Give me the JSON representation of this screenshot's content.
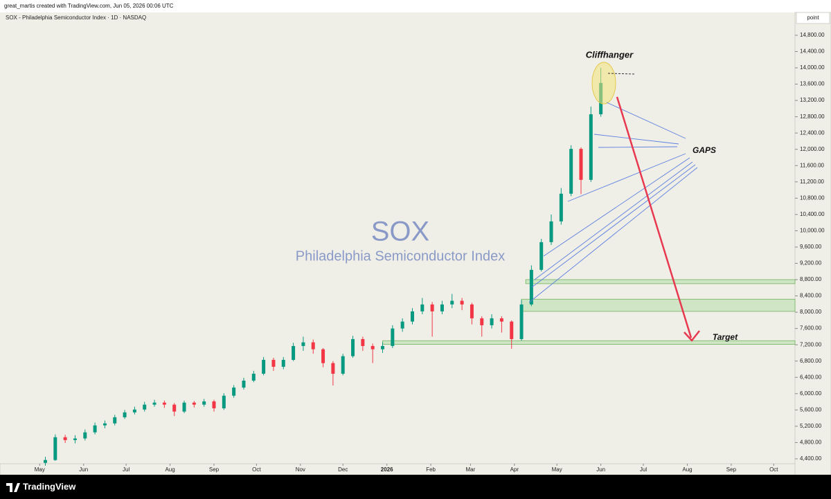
{
  "chart_data": {
    "type": "candlestick",
    "credit": "great_martis created with TradingView.com, Jun 05, 2026 00:06 UTC",
    "title": "SOX - Philadelphia Semiconductor Index · 1D · NASDAQ",
    "y_unit": "point",
    "brand": "TradingView",
    "watermark": {
      "symbol": "SOX",
      "name": "Philadelphia Semiconductor Index"
    },
    "annotations": [
      "Cliffhanger",
      "GAPS",
      "Target"
    ],
    "up_color": "#089981",
    "down_color": "#f23645",
    "zone_color": "#b9ddb0",
    "xlim": [
      "2025-04-03",
      "2026-10-16"
    ],
    "ylim": [
      4280,
      15360
    ],
    "xticks": [
      {
        "value": "2025-05-01",
        "label": "May"
      },
      {
        "value": "2025-06-01",
        "label": "Jun"
      },
      {
        "value": "2025-07-01",
        "label": "Jul"
      },
      {
        "value": "2025-08-01",
        "label": "Aug"
      },
      {
        "value": "2025-09-01",
        "label": "Sep"
      },
      {
        "value": "2025-10-01",
        "label": "Oct"
      },
      {
        "value": "2025-11-01",
        "label": "Nov"
      },
      {
        "value": "2025-12-01",
        "label": "Dec"
      },
      {
        "value": "2026-01-01",
        "label": "2026"
      },
      {
        "value": "2026-02-01",
        "label": "Feb"
      },
      {
        "value": "2026-03-01",
        "label": "Mar"
      },
      {
        "value": "2026-04-01",
        "label": "Apr"
      },
      {
        "value": "2026-05-01",
        "label": "May"
      },
      {
        "value": "2026-06-01",
        "label": "Jun"
      },
      {
        "value": "2026-07-01",
        "label": "Jul"
      },
      {
        "value": "2026-08-01",
        "label": "Aug"
      },
      {
        "value": "2026-09-01",
        "label": "Sep"
      },
      {
        "value": "2026-10-01",
        "label": "Oct"
      }
    ],
    "yticks": [
      {
        "value": 4400,
        "label": "4,400.00"
      },
      {
        "value": 4800,
        "label": "4,800.00"
      },
      {
        "value": 5200,
        "label": "5,200.00"
      },
      {
        "value": 5600,
        "label": "5,600.00"
      },
      {
        "value": 6000,
        "label": "6,000.00"
      },
      {
        "value": 6400,
        "label": "6,400.00"
      },
      {
        "value": 6800,
        "label": "6,800.00"
      },
      {
        "value": 7200,
        "label": "7,200.00"
      },
      {
        "value": 7600,
        "label": "7,600.00"
      },
      {
        "value": 8000,
        "label": "8,000.00"
      },
      {
        "value": 8400,
        "label": "8,400.00"
      },
      {
        "value": 8800,
        "label": "8,800.00"
      },
      {
        "value": 9200,
        "label": "9,200.00"
      },
      {
        "value": 9600,
        "label": "9,600.00"
      },
      {
        "value": 10000,
        "label": "10,000.00"
      },
      {
        "value": 10400,
        "label": "10,400.00"
      },
      {
        "value": 10800,
        "label": "10,800.00"
      },
      {
        "value": 11200,
        "label": "11,200.00"
      },
      {
        "value": 11600,
        "label": "11,600.00"
      },
      {
        "value": 12000,
        "label": "12,000.00"
      },
      {
        "value": 12400,
        "label": "12,400.00"
      },
      {
        "value": 12800,
        "label": "12,800.00"
      },
      {
        "value": 13200,
        "label": "13,200.00"
      },
      {
        "value": 13600,
        "label": "13,600.00"
      },
      {
        "value": 14000,
        "label": "14,000.00"
      },
      {
        "value": 14400,
        "label": "14,400.00"
      },
      {
        "value": 14800,
        "label": "14,800.00"
      }
    ],
    "zones": [
      {
        "from": "2025-12-29",
        "low": 7210,
        "high": 7300
      },
      {
        "from": "2026-04-06",
        "low": 8020,
        "high": 8320
      },
      {
        "from": "2026-04-09",
        "low": 8700,
        "high": 8800
      }
    ],
    "candles": {
      "x": [
        "2025-05-05",
        "2025-05-12",
        "2025-05-19",
        "2025-05-26",
        "2025-06-02",
        "2025-06-09",
        "2025-06-16",
        "2025-06-23",
        "2025-06-30",
        "2025-07-07",
        "2025-07-14",
        "2025-07-21",
        "2025-07-28",
        "2025-08-04",
        "2025-08-11",
        "2025-08-18",
        "2025-08-25",
        "2025-09-01",
        "2025-09-08",
        "2025-09-15",
        "2025-09-22",
        "2025-09-29",
        "2025-10-06",
        "2025-10-13",
        "2025-10-20",
        "2025-10-27",
        "2025-11-03",
        "2025-11-10",
        "2025-11-17",
        "2025-11-24",
        "2025-12-01",
        "2025-12-08",
        "2025-12-15",
        "2025-12-22",
        "2025-12-29",
        "2026-01-05",
        "2026-01-12",
        "2026-01-19",
        "2026-01-26",
        "2026-02-02",
        "2026-02-09",
        "2026-02-16",
        "2026-02-23",
        "2026-03-02",
        "2026-03-09",
        "2026-03-16",
        "2026-03-23",
        "2026-03-30",
        "2026-04-06",
        "2026-04-13",
        "2026-04-20",
        "2026-04-27",
        "2026-05-04",
        "2026-05-11",
        "2026-05-18",
        "2026-05-25",
        "2026-06-01"
      ],
      "open": [
        4300,
        4370,
        4930,
        4860,
        4900,
        5050,
        5220,
        5270,
        5420,
        5540,
        5610,
        5730,
        5780,
        5730,
        5560,
        5780,
        5730,
        5810,
        5640,
        5950,
        6150,
        6320,
        6490,
        6830,
        6660,
        6830,
        7170,
        7260,
        7090,
        6750,
        6490,
        6920,
        7340,
        7170,
        7090,
        7170,
        7600,
        7770,
        8020,
        8190,
        8020,
        8190,
        8280,
        8190,
        7850,
        7680,
        7850,
        7770,
        7340,
        8190,
        9040,
        9720,
        10230,
        10910,
        12010,
        11250,
        12860
      ],
      "high": [
        4450,
        5000,
        4990,
        4980,
        5120,
        5290,
        5340,
        5480,
        5600,
        5680,
        5800,
        5850,
        5830,
        5770,
        5830,
        5820,
        5870,
        5850,
        6010,
        6210,
        6390,
        6560,
        6900,
        6880,
        6900,
        7250,
        7400,
        7330,
        7120,
        6800,
        6980,
        7420,
        7400,
        7230,
        7260,
        7680,
        7850,
        8100,
        8350,
        8250,
        8280,
        8450,
        8350,
        8230,
        7900,
        7950,
        7900,
        7800,
        8300,
        9150,
        9800,
        10400,
        11050,
        12100,
        12050,
        13050,
        14000
      ],
      "low": [
        4230,
        4350,
        4790,
        4780,
        4850,
        5000,
        5150,
        5220,
        5380,
        5490,
        5560,
        5680,
        5650,
        5450,
        5520,
        5660,
        5680,
        5560,
        5600,
        5900,
        6100,
        6280,
        6450,
        6560,
        6600,
        6800,
        7050,
        6980,
        6650,
        6200,
        6450,
        6880,
        7050,
        6750,
        7000,
        7120,
        7520,
        7700,
        7950,
        7400,
        7950,
        8100,
        8050,
        7700,
        7400,
        7600,
        7500,
        7100,
        7300,
        8150,
        9000,
        9650,
        10150,
        10850,
        10900,
        11200,
        12800
      ],
      "close": [
        4370,
        4930,
        4860,
        4900,
        5050,
        5220,
        5270,
        5420,
        5540,
        5610,
        5730,
        5780,
        5730,
        5560,
        5780,
        5730,
        5810,
        5640,
        5950,
        6150,
        6320,
        6490,
        6830,
        6660,
        6830,
        7170,
        7260,
        7090,
        6750,
        6490,
        6920,
        7340,
        7170,
        7090,
        7170,
        7600,
        7770,
        8020,
        8190,
        8020,
        8190,
        8280,
        8190,
        7850,
        7680,
        7850,
        7770,
        7340,
        8190,
        9040,
        9720,
        10230,
        10910,
        12010,
        11250,
        12860,
        13630
      ]
    }
  }
}
